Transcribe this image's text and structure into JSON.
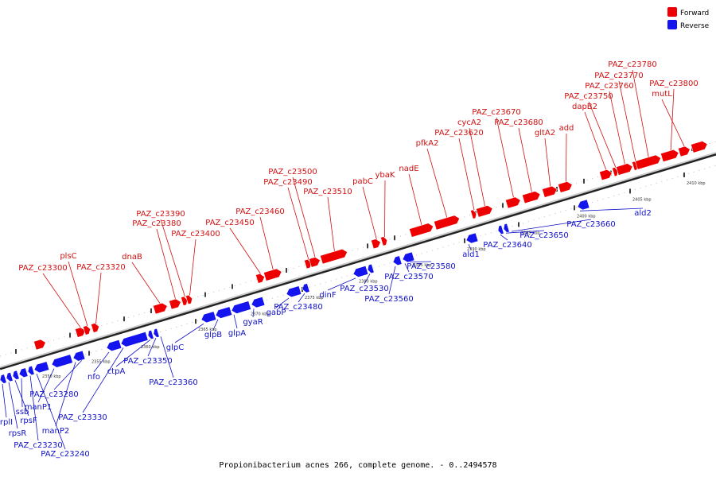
{
  "legend": {
    "forward": "Forward",
    "reverse": "Reverse"
  },
  "colors": {
    "forward": "#ee0000",
    "reverse": "#1414ee",
    "axis": "#888888",
    "forward_label": "#d01010",
    "reverse_label": "#1010c8"
  },
  "caption": "Propionibacterium acnes 266, complete genome. - 0..2494578",
  "scale_labels": [
    "2350 kbp",
    "2355 kbp",
    "2360 kbp",
    "2365 kbp",
    "2370 kbp",
    "2375 kbp",
    "2380 kbp",
    "2385 kbp",
    "2390 kbp",
    "2395 kbp",
    "2400 kbp",
    "2405 kbp",
    "2410 kbp"
  ],
  "forward_genes": [
    "PAZ_c23300",
    "plsC",
    "PAZ_c23320",
    "dnaB",
    "PAZ_c23380",
    "PAZ_c23390",
    "PAZ_c23400",
    "PAZ_c23450",
    "PAZ_c23460",
    "PAZ_c23490",
    "PAZ_c23500",
    "PAZ_c23510",
    "pabC",
    "ybaK",
    "nadE",
    "pfkA2",
    "PAZ_c23620",
    "cycA2",
    "PAZ_c23670",
    "PAZ_c23680",
    "gltA2",
    "add",
    "dapB2",
    "PAZ_c23750",
    "PAZ_c23760",
    "PAZ_c23770",
    "PAZ_c23780",
    "PAZ_c23800",
    "mutL"
  ],
  "reverse_genes": [
    "rplI",
    "rpsR",
    "rpsF",
    "ssb",
    "PAZ_c23230",
    "PAZ_c23240",
    "manP1",
    "manP2",
    "PAZ_c23280",
    "nfo",
    "PAZ_c23330",
    "ctpA",
    "PAZ_c23350",
    "PAZ_c23360",
    "glpC",
    "glpB",
    "glpA",
    "gyaR",
    "gabP",
    "PAZ_c23480",
    "dinF",
    "PAZ_c23530",
    "PAZ_c23560",
    "PAZ_c23570",
    "PAZ_c23580",
    "ald1",
    "PAZ_c23640",
    "PAZ_c23650",
    "PAZ_c23660",
    "ald2"
  ]
}
